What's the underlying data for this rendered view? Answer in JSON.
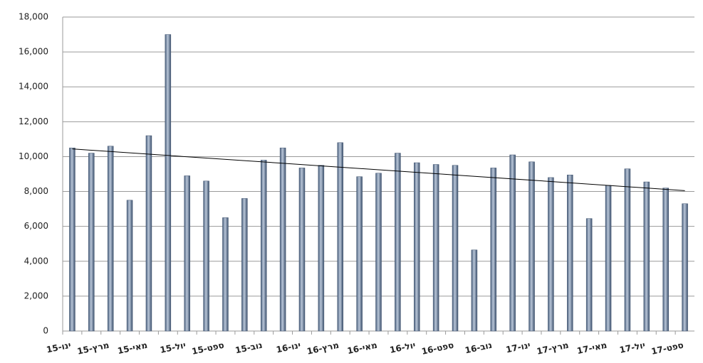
{
  "chart_data": {
    "type": "bar",
    "categories": [
      "ינו-15",
      null,
      "מרץ-15",
      null,
      "מאי-15",
      null,
      "יול-15",
      null,
      "ספט-15",
      null,
      "נוב-15",
      null,
      "ינו-16",
      null,
      "מרץ-16",
      null,
      "מאי-16",
      null,
      "יול-16",
      null,
      "ספט-16",
      null,
      "נוב-16",
      null,
      "ינו-17",
      null,
      "מרץ-17",
      null,
      "מאי-17",
      null,
      "יול-17",
      null,
      "ספט-17"
    ],
    "values": [
      10500,
      10200,
      10600,
      7500,
      11200,
      17000,
      8900,
      8600,
      6500,
      7600,
      9800,
      10500,
      9350,
      9500,
      10800,
      8850,
      9050,
      10200,
      9650,
      9550,
      9500,
      4650,
      9350,
      10100,
      9700,
      8800,
      8950,
      6450,
      8350,
      9300,
      8550,
      8200,
      7300
    ],
    "color": "#7f93ad",
    "trendline": "linear",
    "ylim": [
      0,
      18000
    ],
    "yticks": [
      0,
      {
        "value": 2000,
        "label": "2,000"
      },
      {
        "value": 4000,
        "label": "4,000"
      },
      {
        "value": 6000,
        "label": "6,000"
      },
      {
        "value": 8000,
        "label": "8,000"
      },
      {
        "value": 10000,
        "label": "10,000"
      },
      {
        "value": 12000,
        "label": "12,000"
      },
      {
        "value": 14000,
        "label": "14,000"
      },
      {
        "value": 16000,
        "label": "16,000"
      },
      {
        "value": 18000,
        "label": "18,000"
      }
    ],
    "grid": true
  }
}
